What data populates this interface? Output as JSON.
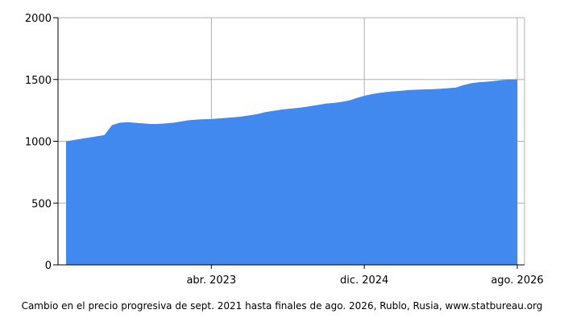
{
  "chart_data": {
    "type": "area",
    "caption": "Cambio en el precio progresiva de sept. 2021 hasta finales de ago. 2026, Rublo, Rusia, www.statbureau.org",
    "x_tick_labels": [
      "abr. 2023",
      "dic. 2024",
      "ago. 2026"
    ],
    "x_ticks": [
      "2023-04",
      "2024-12",
      "2026-08"
    ],
    "xlim": [
      "2021-09",
      "2026-08"
    ],
    "ylim": [
      0,
      2000
    ],
    "y_ticks": [
      0,
      500,
      1000,
      1500,
      2000
    ],
    "grid": true,
    "legend": "none",
    "colors": {
      "area": "#4189EE",
      "grid": "#b0b0b0",
      "axis": "#000000"
    },
    "x": [
      "2021-09",
      "2021-10",
      "2021-11",
      "2021-12",
      "2022-01",
      "2022-02",
      "2022-03",
      "2022-04",
      "2022-05",
      "2022-06",
      "2022-07",
      "2022-08",
      "2022-09",
      "2022-10",
      "2022-11",
      "2022-12",
      "2023-01",
      "2023-02",
      "2023-03",
      "2023-04",
      "2023-05",
      "2023-06",
      "2023-07",
      "2023-08",
      "2023-09",
      "2023-10",
      "2023-11",
      "2023-12",
      "2024-01",
      "2024-02",
      "2024-03",
      "2024-04",
      "2024-05",
      "2024-06",
      "2024-07",
      "2024-08",
      "2024-09",
      "2024-10",
      "2024-11",
      "2024-12",
      "2025-01",
      "2025-02",
      "2025-03",
      "2025-04",
      "2025-05",
      "2025-06",
      "2025-07",
      "2025-08",
      "2025-09",
      "2025-10",
      "2025-11",
      "2025-12",
      "2026-01",
      "2026-02",
      "2026-03",
      "2026-04",
      "2026-05",
      "2026-06",
      "2026-07",
      "2026-08"
    ],
    "values": [
      1000,
      1010,
      1020,
      1030,
      1040,
      1050,
      1130,
      1150,
      1155,
      1150,
      1145,
      1140,
      1140,
      1145,
      1150,
      1160,
      1170,
      1175,
      1178,
      1180,
      1185,
      1190,
      1195,
      1200,
      1210,
      1220,
      1235,
      1245,
      1255,
      1262,
      1268,
      1275,
      1285,
      1295,
      1305,
      1310,
      1318,
      1330,
      1350,
      1368,
      1382,
      1392,
      1400,
      1405,
      1410,
      1415,
      1418,
      1420,
      1422,
      1425,
      1430,
      1435,
      1455,
      1470,
      1478,
      1482,
      1488,
      1495,
      1500,
      1500
    ]
  }
}
